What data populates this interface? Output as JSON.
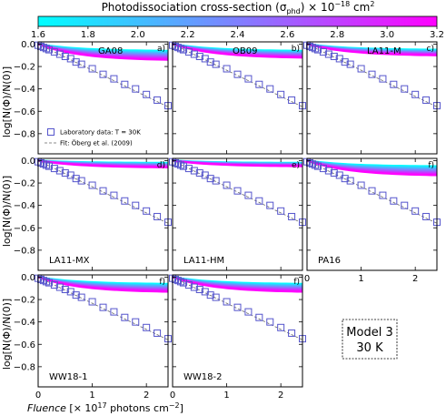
{
  "colorbar": {
    "title": "Photodissociation cross-section (σ",
    "title_sub": "phd",
    "title_tail": ") × 10",
    "title_exp": "−18",
    "title_unit": " cm",
    "title_unit_exp": "2",
    "ticks": [
      "1.6",
      "1.8",
      "2.0",
      "2.2",
      "2.4",
      "2.6",
      "2.8",
      "3.0",
      "3.2"
    ],
    "range": [
      1.6,
      3.2
    ],
    "colors": [
      "#00ffff",
      "#ff00ff"
    ]
  },
  "figure": {
    "ylabel": "log[N(Φ)/N(0)]",
    "xlabel_italic": "Fluence",
    "xlabel_rest": " [× 10",
    "xlabel_exp": "17",
    "xlabel_unit": " photons cm",
    "xlabel_unit_exp": "−2",
    "xlabel_close": "]",
    "x_ticks": [
      "0",
      "1",
      "2"
    ],
    "y_ticks": [
      "0.0",
      "−0.2",
      "−0.4",
      "−0.6",
      "−0.8"
    ],
    "model_box_line1": "Model 3",
    "model_box_line2": "30 K"
  },
  "legend": {
    "data_label": "Laboratory data: T = 30K",
    "fit_label": "Fit: Öberg et al. (2009)"
  },
  "chart_data": {
    "type": "scatter",
    "xlabel": "Fluence [× 10^17 photons cm^-2]",
    "ylabel": "log[N(Φ)/N(0)]",
    "xlim": [
      0,
      2.4
    ],
    "ylim": [
      -0.98,
      0.02
    ],
    "lab_data": {
      "name": "Laboratory data: T = 30K",
      "x": [
        0.0,
        0.05,
        0.1,
        0.15,
        0.2,
        0.3,
        0.4,
        0.5,
        0.6,
        0.7,
        0.8,
        1.0,
        1.2,
        1.4,
        1.6,
        1.8,
        2.0,
        2.2,
        2.4
      ],
      "y": [
        -0.01,
        -0.02,
        -0.03,
        -0.04,
        -0.05,
        -0.07,
        -0.09,
        -0.11,
        -0.13,
        -0.16,
        -0.18,
        -0.22,
        -0.27,
        -0.31,
        -0.36,
        -0.4,
        -0.45,
        -0.5,
        -0.55
      ]
    },
    "fit": {
      "name": "Fit: Öberg et al. (2009)",
      "x": [
        0.0,
        2.4
      ],
      "y": [
        0.0,
        -0.56
      ]
    },
    "model_band": {
      "description": "fan of model curves colored by photodissociation cross-section",
      "sigma_range": [
        1.6,
        3.2
      ]
    },
    "panels": [
      {
        "id": "a)",
        "name": "GA08",
        "name_pos": "top",
        "band_top_end": -0.06,
        "band_bottom_end": -0.14
      },
      {
        "id": "b)",
        "name": "OB09",
        "name_pos": "top",
        "band_top_end": -0.06,
        "band_bottom_end": -0.12
      },
      {
        "id": "c)",
        "name": "LA11-M",
        "name_pos": "top",
        "band_top_end": -0.05,
        "band_bottom_end": -0.1
      },
      {
        "id": "d)",
        "name": "LA11-MX",
        "name_pos": "bottom",
        "band_top_end": -0.02,
        "band_bottom_end": -0.06
      },
      {
        "id": "e)",
        "name": "LA11-HM",
        "name_pos": "bottom",
        "band_top_end": -0.02,
        "band_bottom_end": -0.05
      },
      {
        "id": "f)",
        "name": "PA16",
        "name_pos": "bottom",
        "band_top_end": -0.05,
        "band_bottom_end": -0.13
      },
      {
        "id": "f)",
        "name": "WW18-1",
        "name_pos": "bottom",
        "band_top_end": -0.06,
        "band_bottom_end": -0.13
      },
      {
        "id": "f)",
        "name": "WW18-2",
        "name_pos": "bottom",
        "band_top_end": -0.06,
        "band_bottom_end": -0.13
      }
    ]
  }
}
